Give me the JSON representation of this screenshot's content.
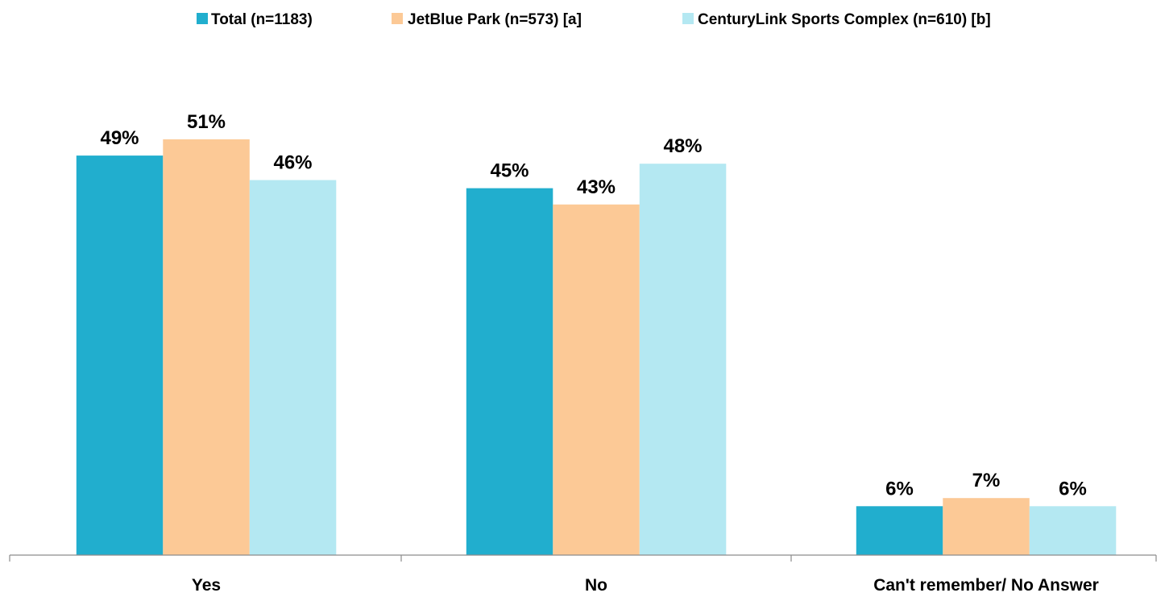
{
  "chart_data": {
    "type": "bar",
    "categories": [
      "Yes",
      "No",
      "Can't remember/ No Answer"
    ],
    "series": [
      {
        "name": "Total (n=1183)",
        "color": "#21AECE",
        "values": [
          49,
          45,
          6
        ],
        "labels": [
          "49%",
          "45%",
          "6%"
        ]
      },
      {
        "name": "JetBlue Park (n=573)  [a]",
        "color": "#FCC996",
        "values": [
          51,
          43,
          7
        ],
        "labels": [
          "51%",
          "43%",
          "7%"
        ]
      },
      {
        "name": "CenturyLink Sports Complex (n=610)  [b]",
        "color": "#B4E8F2",
        "values": [
          46,
          48,
          6
        ],
        "labels": [
          "46%",
          "48%",
          "6%"
        ]
      }
    ],
    "ylim": [
      0,
      60
    ],
    "grid": false,
    "legend_position": "top"
  }
}
